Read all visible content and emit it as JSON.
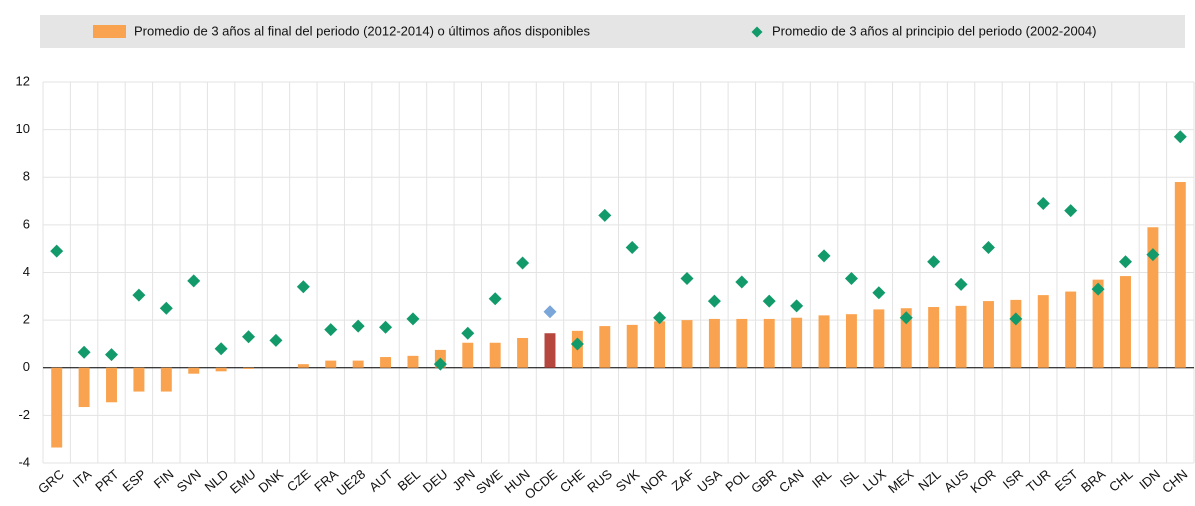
{
  "chart_data": {
    "type": "bar",
    "categories": [
      "GRC",
      "ITA",
      "PRT",
      "ESP",
      "FIN",
      "SVN",
      "NLD",
      "EMU",
      "DNK",
      "CZE",
      "FRA",
      "UE28",
      "AUT",
      "BEL",
      "DEU",
      "JPN",
      "SWE",
      "HUN",
      "OCDE",
      "CHE",
      "RUS",
      "SVK",
      "NOR",
      "ZAF",
      "USA",
      "POL",
      "GBR",
      "CAN",
      "IRL",
      "ISL",
      "LUX",
      "MEX",
      "NZL",
      "AUS",
      "KOR",
      "ISR",
      "TUR",
      "EST",
      "BRA",
      "CHL",
      "IDN",
      "CHN"
    ],
    "series": [
      {
        "name": "Promedio de 3 años al final del periodo (2012-2014) o últimos años disponibles",
        "type": "bar",
        "color": "#f9a350",
        "highlight_category": "OCDE",
        "highlight_color": "#b5473f",
        "values": [
          -3.35,
          -1.65,
          -1.45,
          -1.0,
          -1.0,
          -0.25,
          -0.15,
          -0.05,
          0,
          0.15,
          0.3,
          0.3,
          0.45,
          0.5,
          0.75,
          1.05,
          1.05,
          1.25,
          1.45,
          1.55,
          1.75,
          1.8,
          1.95,
          2.0,
          2.05,
          2.05,
          2.05,
          2.1,
          2.2,
          2.25,
          2.45,
          2.5,
          2.55,
          2.6,
          2.8,
          2.85,
          3.05,
          3.2,
          3.7,
          3.85,
          5.9,
          7.8
        ]
      },
      {
        "name": "Promedio de 3 años al principio del periodo (2002-2004)",
        "type": "scatter",
        "color": "#139a6b",
        "highlight_category": "OCDE",
        "highlight_color": "#7aa6d9",
        "values": [
          4.9,
          0.65,
          0.55,
          3.05,
          2.5,
          3.65,
          0.8,
          1.3,
          1.15,
          3.4,
          1.6,
          1.75,
          1.7,
          2.05,
          0.15,
          1.45,
          2.9,
          4.4,
          2.35,
          1.0,
          6.4,
          5.05,
          2.1,
          3.75,
          2.8,
          3.6,
          2.8,
          2.6,
          4.7,
          3.75,
          3.15,
          2.1,
          4.45,
          3.5,
          5.05,
          2.05,
          6.9,
          6.6,
          3.3,
          4.45,
          4.75,
          9.7
        ]
      }
    ],
    "ylim": [
      -4,
      12
    ],
    "yticks": [
      -4,
      -2,
      0,
      2,
      4,
      6,
      8,
      10,
      12
    ],
    "grid": true
  }
}
